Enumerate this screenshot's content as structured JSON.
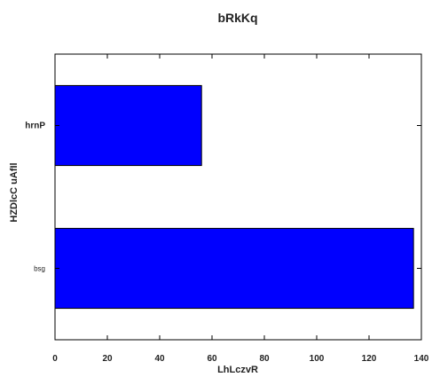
{
  "chart_data": {
    "type": "bar",
    "orientation": "horizontal",
    "title": "bRkKq",
    "xlabel": "LhLczvR",
    "ylabel": "HZDlcC uAfIl",
    "categories": [
      "bsg",
      "hrnP"
    ],
    "values": [
      137,
      56
    ],
    "xlim": [
      0,
      140
    ],
    "xticks": [
      "0",
      "20",
      "40",
      "60",
      "80",
      "100",
      "120",
      "140"
    ],
    "bar_color": "#0000ff",
    "grid": false,
    "legend": "none"
  }
}
